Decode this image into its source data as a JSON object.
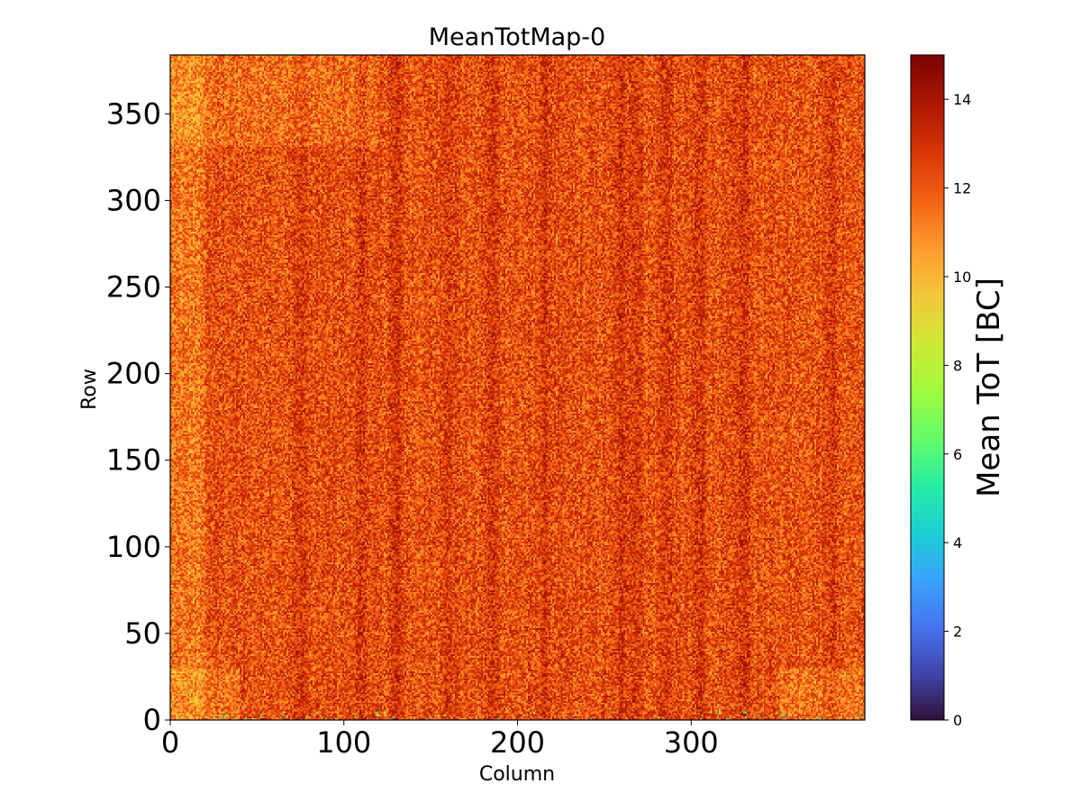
{
  "chart_data": {
    "type": "heatmap",
    "title": "MeanTotMap-0",
    "xlabel": "Column",
    "ylabel": "Row",
    "xlim": [
      0,
      400
    ],
    "ylim": [
      0,
      384
    ],
    "x_ticks": [
      0,
      100,
      200,
      300
    ],
    "x_tick_labels": [
      "0",
      "100",
      "200",
      "300"
    ],
    "y_ticks": [
      0,
      50,
      100,
      150,
      200,
      250,
      300,
      350
    ],
    "y_tick_labels": [
      "0",
      "50",
      "100",
      "150",
      "200",
      "250",
      "300",
      "350"
    ],
    "colorbar": {
      "label": "Mean ToT [BC]",
      "range": [
        0,
        15
      ],
      "ticks": [
        0,
        2,
        4,
        6,
        8,
        10,
        12,
        14
      ],
      "tick_labels": [
        "0",
        "2",
        "4",
        "6",
        "8",
        "10",
        "12",
        "14"
      ],
      "colormap": "turbo"
    },
    "columns": 400,
    "rows": 384,
    "value_summary": {
      "typical_range": [
        10,
        14
      ],
      "dark_column_bands": [
        75,
        110,
        130,
        160,
        185,
        215,
        260,
        268,
        285,
        305,
        330,
        380
      ],
      "lighter_regions": [
        "left edge columns 0-20",
        "top rows 330-384 on left",
        "bottom corners rows 0-30"
      ]
    }
  }
}
